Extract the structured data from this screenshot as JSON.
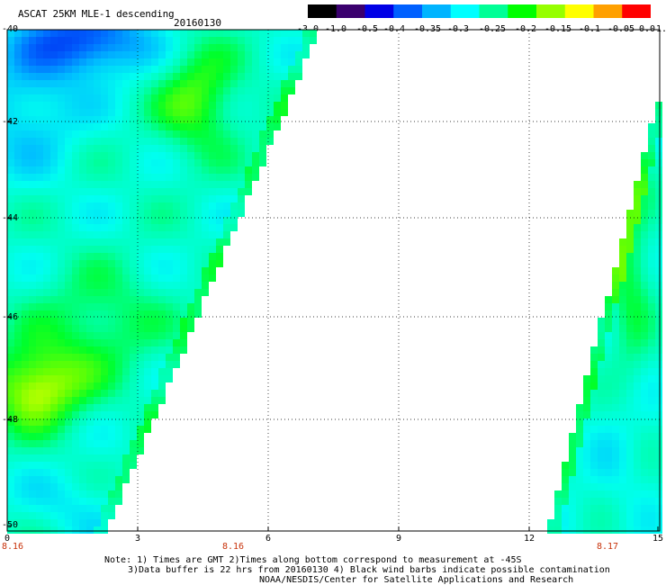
{
  "header": {
    "title": "ASCAT 25KM MLE-1 descending",
    "date": "20160130"
  },
  "colorbar": {
    "labels": [
      "-3.0",
      "-1.0",
      "-0.5",
      "-0.4",
      "-0.35",
      "-0.3",
      "-0.25",
      "-0.2",
      "-0.15",
      "-0.1",
      "-0.05",
      "0.0",
      "1.0"
    ],
    "colors": [
      "#000000",
      "#3a006e",
      "#0000e6",
      "#0060ff",
      "#00b4ff",
      "#00ffff",
      "#00ff96",
      "#00ff00",
      "#96ff00",
      "#ffff00",
      "#ffa000",
      "#ff0000"
    ]
  },
  "map": {
    "y_axis": [
      "-40",
      "-42",
      "-44",
      "-46",
      "-48",
      "-50"
    ],
    "x_axis": [
      "0",
      "3",
      "6",
      "9",
      "12",
      "15"
    ],
    "time_labels": [
      "8.16",
      "8.16",
      "8.17"
    ],
    "lat_range": [
      -50,
      -40
    ],
    "lon_range": [
      0,
      15
    ],
    "grid": true
  },
  "notes": {
    "line1": "Note: 1) Times are GMT 2)Times along bottom correspond to measurement at -45S",
    "line2": "3)Data buffer is 22 hrs from 20160130 4) Black wind barbs indicate possible contamination",
    "line3": "NOAA/NESDIS/Center for Satellite Applications and Research"
  }
}
